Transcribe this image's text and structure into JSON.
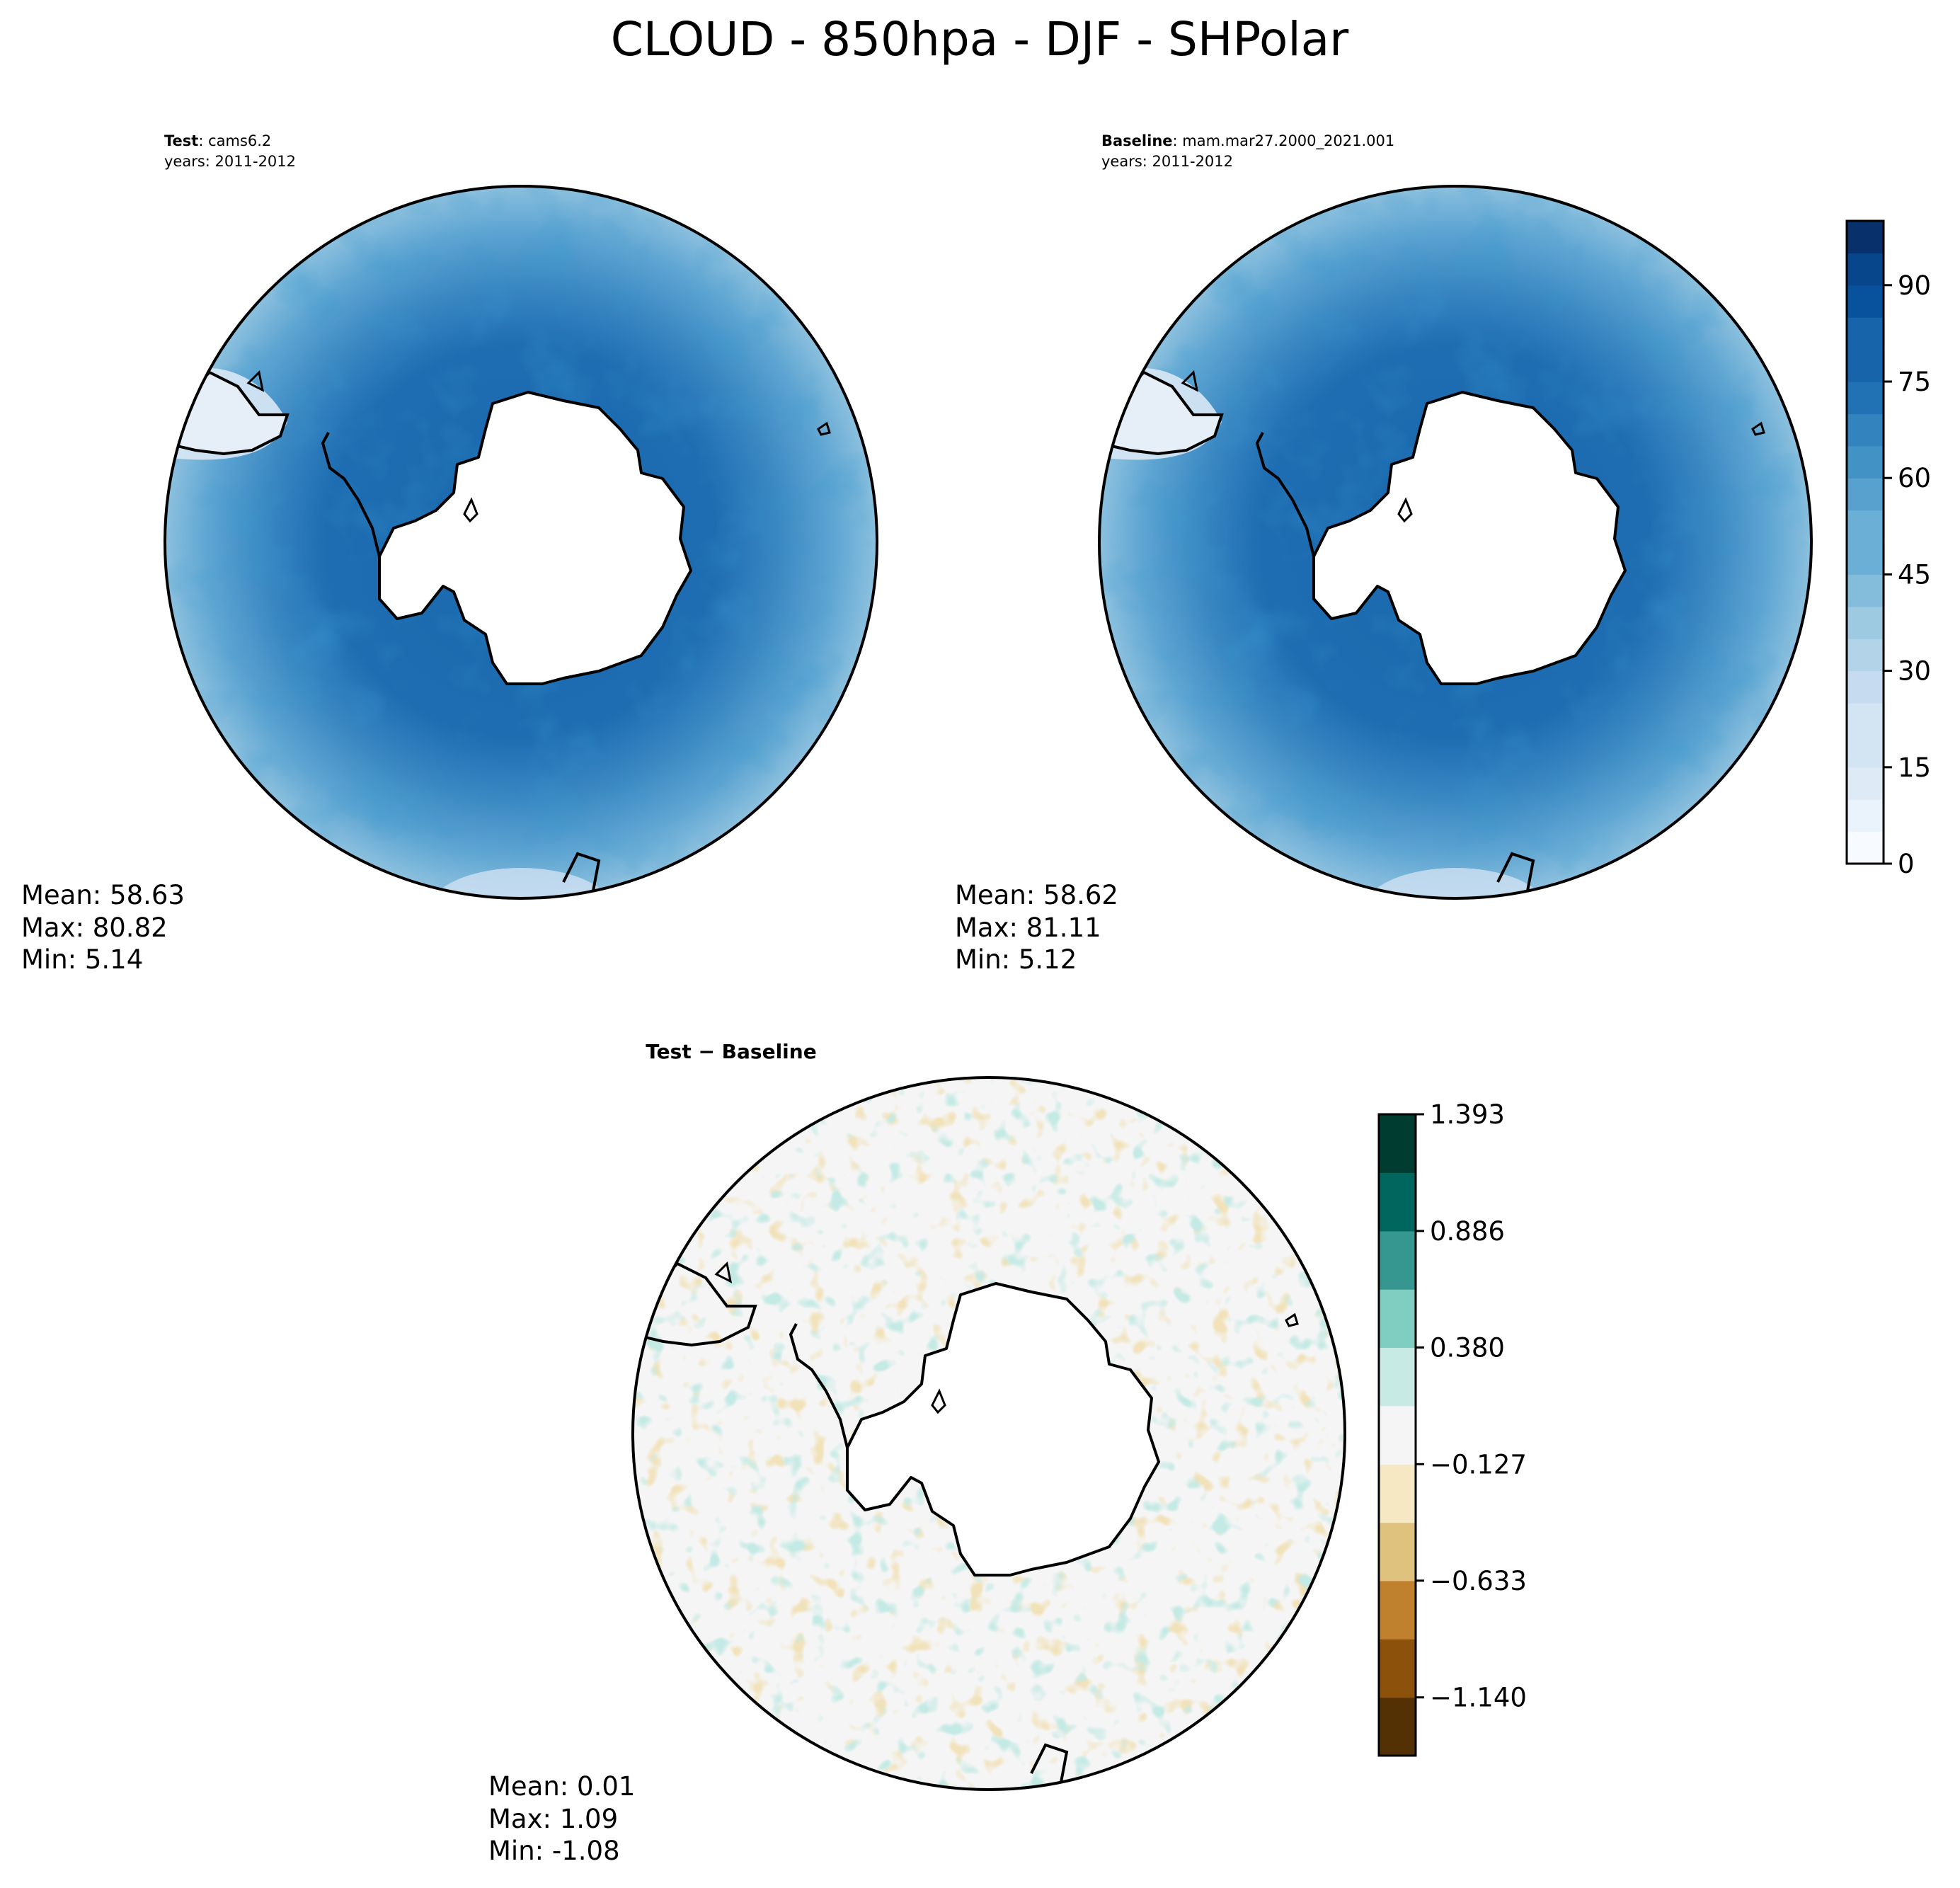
{
  "figure": {
    "title": "CLOUD - 850hpa - DJF - SHPolar"
  },
  "colors": {
    "land_mask": "#ffffff",
    "coast": "#000000",
    "blues": [
      "#f7fbff",
      "#eaf2fb",
      "#deebf7",
      "#d3e4f3",
      "#c6dbef",
      "#b3d3e8",
      "#9ecae1",
      "#84bcdb",
      "#6baed6",
      "#58a1cf",
      "#4292c6",
      "#3383be",
      "#2171b5",
      "#1764ab",
      "#08519c",
      "#08468b",
      "#08306b"
    ],
    "brbg": [
      "#543005",
      "#8c510a",
      "#bf812d",
      "#dfc27d",
      "#f6e8c3",
      "#f5f5f5",
      "#c7eae5",
      "#80cdc1",
      "#35978f",
      "#01665e",
      "#003c30"
    ]
  },
  "chart_data": [
    {
      "type": "heatmap",
      "projection": "south-polar-stereographic",
      "label_bold": "Test",
      "label_rest": ": cams6.2",
      "years": "years: 2011-2012",
      "stats": {
        "mean": "Mean: 58.63",
        "max": "Max: 80.82",
        "min": "Min:  5.14"
      },
      "field": {
        "mean": 58.63,
        "max": 80.82,
        "min": 5.14
      }
    },
    {
      "type": "heatmap",
      "projection": "south-polar-stereographic",
      "label_bold": "Baseline",
      "label_rest": ": mam.mar27.2000_2021.001",
      "years": "years: 2011-2012",
      "stats": {
        "mean": "Mean: 58.62",
        "max": "Max: 81.11",
        "min": "Min:  5.12"
      },
      "field": {
        "mean": 58.62,
        "max": 81.11,
        "min": 5.12
      },
      "colorbar": {
        "levels": [
          0,
          5,
          10,
          15,
          20,
          25,
          30,
          35,
          40,
          45,
          50,
          55,
          60,
          65,
          70,
          75,
          80,
          85,
          90,
          95,
          100
        ],
        "ticks": [
          0,
          15,
          30,
          45,
          60,
          75,
          90
        ],
        "tick_labels": [
          "0",
          "15",
          "30",
          "45",
          "60",
          "75",
          "90"
        ],
        "range": [
          0,
          100
        ]
      }
    },
    {
      "type": "heatmap",
      "projection": "south-polar-stereographic",
      "title": "Test − Baseline",
      "stats": {
        "mean": "Mean:  0.01",
        "max": "Max:  1.09",
        "min": "Min: -1.08"
      },
      "field": {
        "mean": 0.01,
        "max": 1.09,
        "min": -1.08
      },
      "colorbar": {
        "levels": [
          -1.393,
          -1.14,
          -0.886,
          -0.633,
          -0.38,
          -0.127,
          0.127,
          0.38,
          0.633,
          0.886,
          1.14,
          1.393
        ],
        "ticks": [
          1.393,
          0.886,
          0.38,
          -0.127,
          -0.633,
          -1.14
        ],
        "tick_labels": [
          "1.393",
          "0.886",
          "0.380",
          "−0.127",
          "−0.633",
          "−1.140"
        ],
        "range": [
          -1.393,
          1.393
        ]
      }
    }
  ]
}
